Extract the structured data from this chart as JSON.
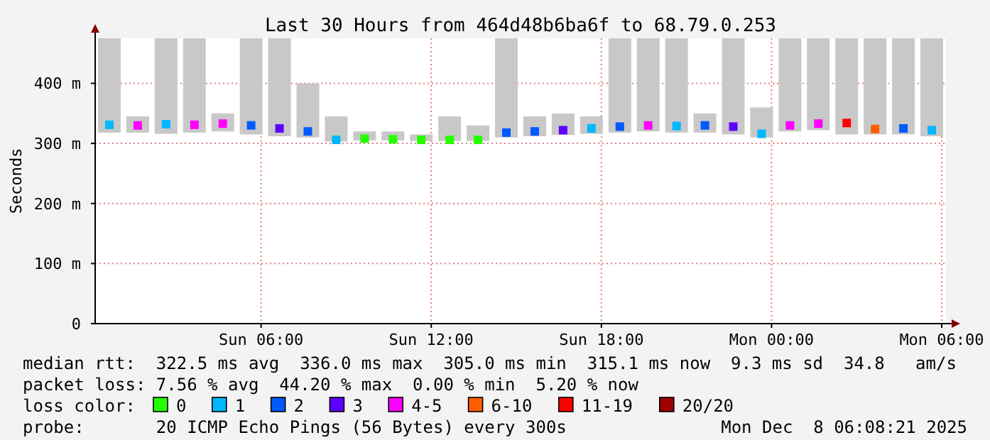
{
  "chart_data": {
    "type": "scatter",
    "title": "Last 30 Hours from 464d48b6ba6f to 68.79.0.253",
    "ylabel": "Seconds",
    "x": [
      "2025-12-07T00:39",
      "2025-12-07T01:39",
      "2025-12-07T02:39",
      "2025-12-07T03:39",
      "2025-12-07T04:39",
      "2025-12-07T05:39",
      "2025-12-07T06:39",
      "2025-12-07T07:39",
      "2025-12-07T08:39",
      "2025-12-07T09:39",
      "2025-12-07T10:39",
      "2025-12-07T11:39",
      "2025-12-07T12:39",
      "2025-12-07T13:39",
      "2025-12-07T14:39",
      "2025-12-07T15:39",
      "2025-12-07T16:39",
      "2025-12-07T17:39",
      "2025-12-07T18:39",
      "2025-12-07T19:39",
      "2025-12-07T20:39",
      "2025-12-07T21:39",
      "2025-12-07T22:39",
      "2025-12-07T23:39",
      "2025-12-08T00:39",
      "2025-12-08T01:39",
      "2025-12-08T02:39",
      "2025-12-08T03:39",
      "2025-12-08T04:39",
      "2025-12-08T05:39"
    ],
    "xlim": [
      "2025-12-07T00:09",
      "2025-12-08T06:09"
    ],
    "xticks": [
      {
        "value": "2025-12-07T06:00",
        "label": "Sun 06:00"
      },
      {
        "value": "2025-12-07T12:00",
        "label": "Sun 12:00"
      },
      {
        "value": "2025-12-07T18:00",
        "label": "Sun 18:00"
      },
      {
        "value": "2025-12-08T00:00",
        "label": "Mon 00:00"
      },
      {
        "value": "2025-12-08T06:00",
        "label": "Mon 06:00"
      }
    ],
    "ylim": [
      0,
      475
    ],
    "yticks": [
      {
        "value": 0,
        "label": "0"
      },
      {
        "value": 100,
        "label": "100 m"
      },
      {
        "value": 200,
        "label": "200 m"
      },
      {
        "value": 300,
        "label": "300 m"
      },
      {
        "value": 400,
        "label": "400 m"
      }
    ],
    "grid": true,
    "legend": "bottom",
    "legend_title": "loss color:",
    "marker": "square",
    "series": [
      {
        "type": "bar",
        "color": "#c8c8c8",
        "base": [
          318,
          318,
          316,
          318,
          320,
          315,
          312,
          310,
          303,
          305,
          305,
          304,
          304,
          304,
          310,
          312,
          314,
          316,
          318,
          320,
          318,
          318,
          315,
          310,
          320,
          322,
          315,
          315,
          315,
          312
        ],
        "values": [
          157,
          27,
          159,
          157,
          30,
          160,
          163,
          90,
          42,
          15,
          15,
          11,
          41,
          26,
          165,
          33,
          36,
          29,
          157,
          155,
          157,
          32,
          160,
          50,
          155,
          153,
          160,
          160,
          160,
          163
        ]
      },
      {
        "name": "0",
        "color": "#26ff00",
        "values": [
          null,
          null,
          null,
          null,
          null,
          null,
          null,
          null,
          null,
          308,
          307,
          306,
          306,
          306,
          null,
          null,
          null,
          null,
          null,
          null,
          null,
          null,
          null,
          null,
          null,
          null,
          null,
          null,
          null,
          null
        ]
      },
      {
        "name": "1",
        "color": "#00b8ff",
        "values": [
          331,
          null,
          332,
          null,
          null,
          null,
          null,
          null,
          306,
          null,
          null,
          null,
          null,
          null,
          null,
          null,
          null,
          325,
          null,
          null,
          329,
          null,
          null,
          316,
          null,
          null,
          null,
          null,
          null,
          322
        ]
      },
      {
        "name": "2",
        "color": "#0059ff",
        "values": [
          null,
          null,
          null,
          null,
          null,
          330,
          null,
          320,
          null,
          null,
          null,
          null,
          null,
          null,
          318,
          320,
          null,
          null,
          328,
          null,
          null,
          330,
          null,
          null,
          null,
          null,
          null,
          null,
          325,
          null
        ]
      },
      {
        "name": "3",
        "color": "#5e00ff",
        "values": [
          null,
          null,
          null,
          null,
          null,
          null,
          325,
          null,
          null,
          null,
          null,
          null,
          null,
          null,
          null,
          null,
          322,
          null,
          null,
          null,
          null,
          null,
          328,
          null,
          null,
          null,
          null,
          null,
          null,
          null
        ]
      },
      {
        "name": "4-5",
        "color": "#ff00fe",
        "values": [
          null,
          330,
          null,
          331,
          333,
          null,
          null,
          null,
          null,
          null,
          null,
          null,
          null,
          null,
          null,
          null,
          null,
          null,
          null,
          330,
          null,
          null,
          null,
          null,
          330,
          333,
          null,
          null,
          null,
          null
        ]
      },
      {
        "name": "6-10",
        "color": "#ff5e00",
        "values": [
          null,
          null,
          null,
          null,
          null,
          null,
          null,
          null,
          null,
          null,
          null,
          null,
          null,
          null,
          null,
          null,
          null,
          null,
          null,
          null,
          null,
          null,
          null,
          null,
          null,
          null,
          null,
          324,
          null,
          null
        ]
      },
      {
        "name": "11-19",
        "color": "#ff0000",
        "values": [
          null,
          null,
          null,
          null,
          null,
          null,
          null,
          null,
          null,
          null,
          null,
          null,
          null,
          null,
          null,
          null,
          null,
          null,
          null,
          null,
          null,
          null,
          null,
          null,
          null,
          null,
          334,
          null,
          null,
          null
        ]
      },
      {
        "name": "20/20",
        "color": "#a10000",
        "values": [
          null,
          null,
          null,
          null,
          null,
          null,
          null,
          null,
          null,
          null,
          null,
          null,
          null,
          null,
          null,
          null,
          null,
          null,
          null,
          null,
          null,
          null,
          null,
          null,
          null,
          null,
          null,
          null,
          null,
          null
        ]
      }
    ],
    "annotations": [
      "median rtt:  322.5 ms avg  336.0 ms max  305.0 ms min  315.1 ms now  9.3 ms sd  34.8   am/s",
      "packet loss: 7.56 % avg  44.20 % max  0.00 % min  5.20 % now",
      "probe:       20 ICMP Echo Pings (56 Bytes) every 300s",
      "Mon Dec  8 06:08:21 2025"
    ]
  }
}
